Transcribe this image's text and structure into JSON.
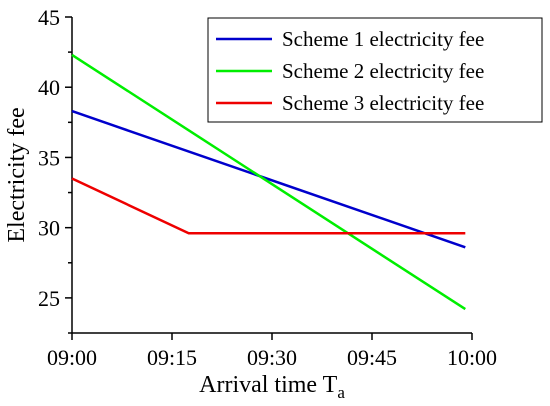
{
  "chart_data": {
    "type": "line",
    "xlabel": "Arrival time T",
    "xlabel_subscript": "a",
    "ylabel": "Electricity fee",
    "x_ticks": [
      "09:00",
      "09:15",
      "09:30",
      "09:45",
      "10:00"
    ],
    "x_tick_minutes": [
      0,
      15,
      30,
      45,
      60
    ],
    "xlim_minutes": [
      0,
      60
    ],
    "ylim": [
      22.5,
      45
    ],
    "y_ticks": [
      25,
      30,
      35,
      40,
      45
    ],
    "grid": false,
    "legend_position": "top-right",
    "series": [
      {
        "name": "Scheme 1 electricity fee",
        "color": "#0000cc",
        "x_minutes": [
          0,
          59
        ],
        "values": [
          38.3,
          28.6
        ]
      },
      {
        "name": "Scheme 2 electricity fee",
        "color": "#00ee00",
        "x_minutes": [
          0,
          59
        ],
        "values": [
          42.3,
          24.2
        ]
      },
      {
        "name": "Scheme 3 electricity fee",
        "color": "#ee0000",
        "x_minutes": [
          0,
          17.5,
          59
        ],
        "values": [
          33.5,
          29.6,
          29.6
        ]
      }
    ]
  }
}
